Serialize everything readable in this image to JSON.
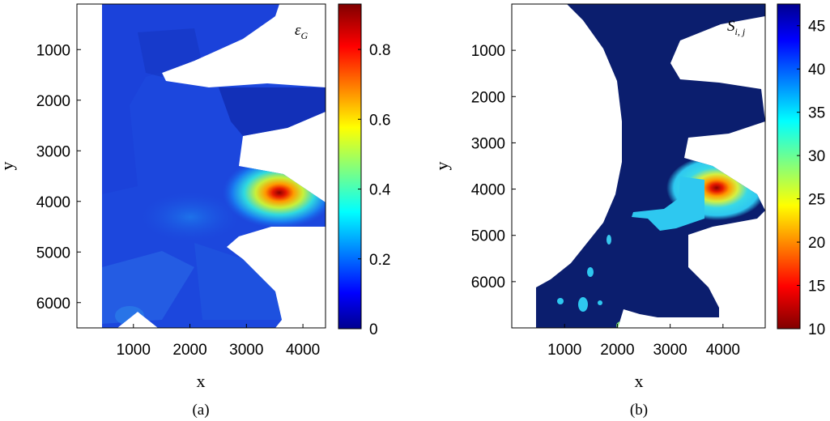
{
  "chart_data": [
    {
      "type": "heatmap",
      "panel_label": "(a)",
      "xlabel": "x",
      "ylabel": "y",
      "annotation": {
        "symbol": "ε",
        "subscript": "G"
      },
      "xlim": [
        0,
        4400
      ],
      "ylim": [
        6500,
        100
      ],
      "xticks": [
        1000,
        2000,
        3000,
        4000
      ],
      "yticks": [
        1000,
        2000,
        3000,
        4000,
        5000,
        6000
      ],
      "colorbar": {
        "min": 0,
        "max": 0.93,
        "ticks": [
          0,
          0.2,
          0.4,
          0.6,
          0.8
        ]
      },
      "background_value": 0.08,
      "hotspot": {
        "x": 3750,
        "y": 3700,
        "peak_value": 0.93
      },
      "colors": {
        "low": "#0a1f9e",
        "high": "#8b0000"
      }
    },
    {
      "type": "heatmap",
      "panel_label": "(b)",
      "xlabel": "x",
      "ylabel": "y",
      "annotation": {
        "symbol": "S",
        "subscript": "i, j"
      },
      "xlim": [
        0,
        4800
      ],
      "ylim": [
        7000,
        0
      ],
      "xticks": [
        1000,
        2000,
        3000,
        4000
      ],
      "yticks": [
        1000,
        2000,
        3000,
        4000,
        5000,
        6000
      ],
      "colorbar": {
        "min": 10,
        "max": 47.5,
        "ticks": [
          10,
          15,
          20,
          25,
          30,
          35,
          40,
          45
        ]
      },
      "background_value": 47,
      "hotspot": {
        "x": 4200,
        "y": 3800,
        "peak_value": 10
      },
      "colors": {
        "low": "#8b0000",
        "high": "#0a1f9e"
      }
    }
  ]
}
